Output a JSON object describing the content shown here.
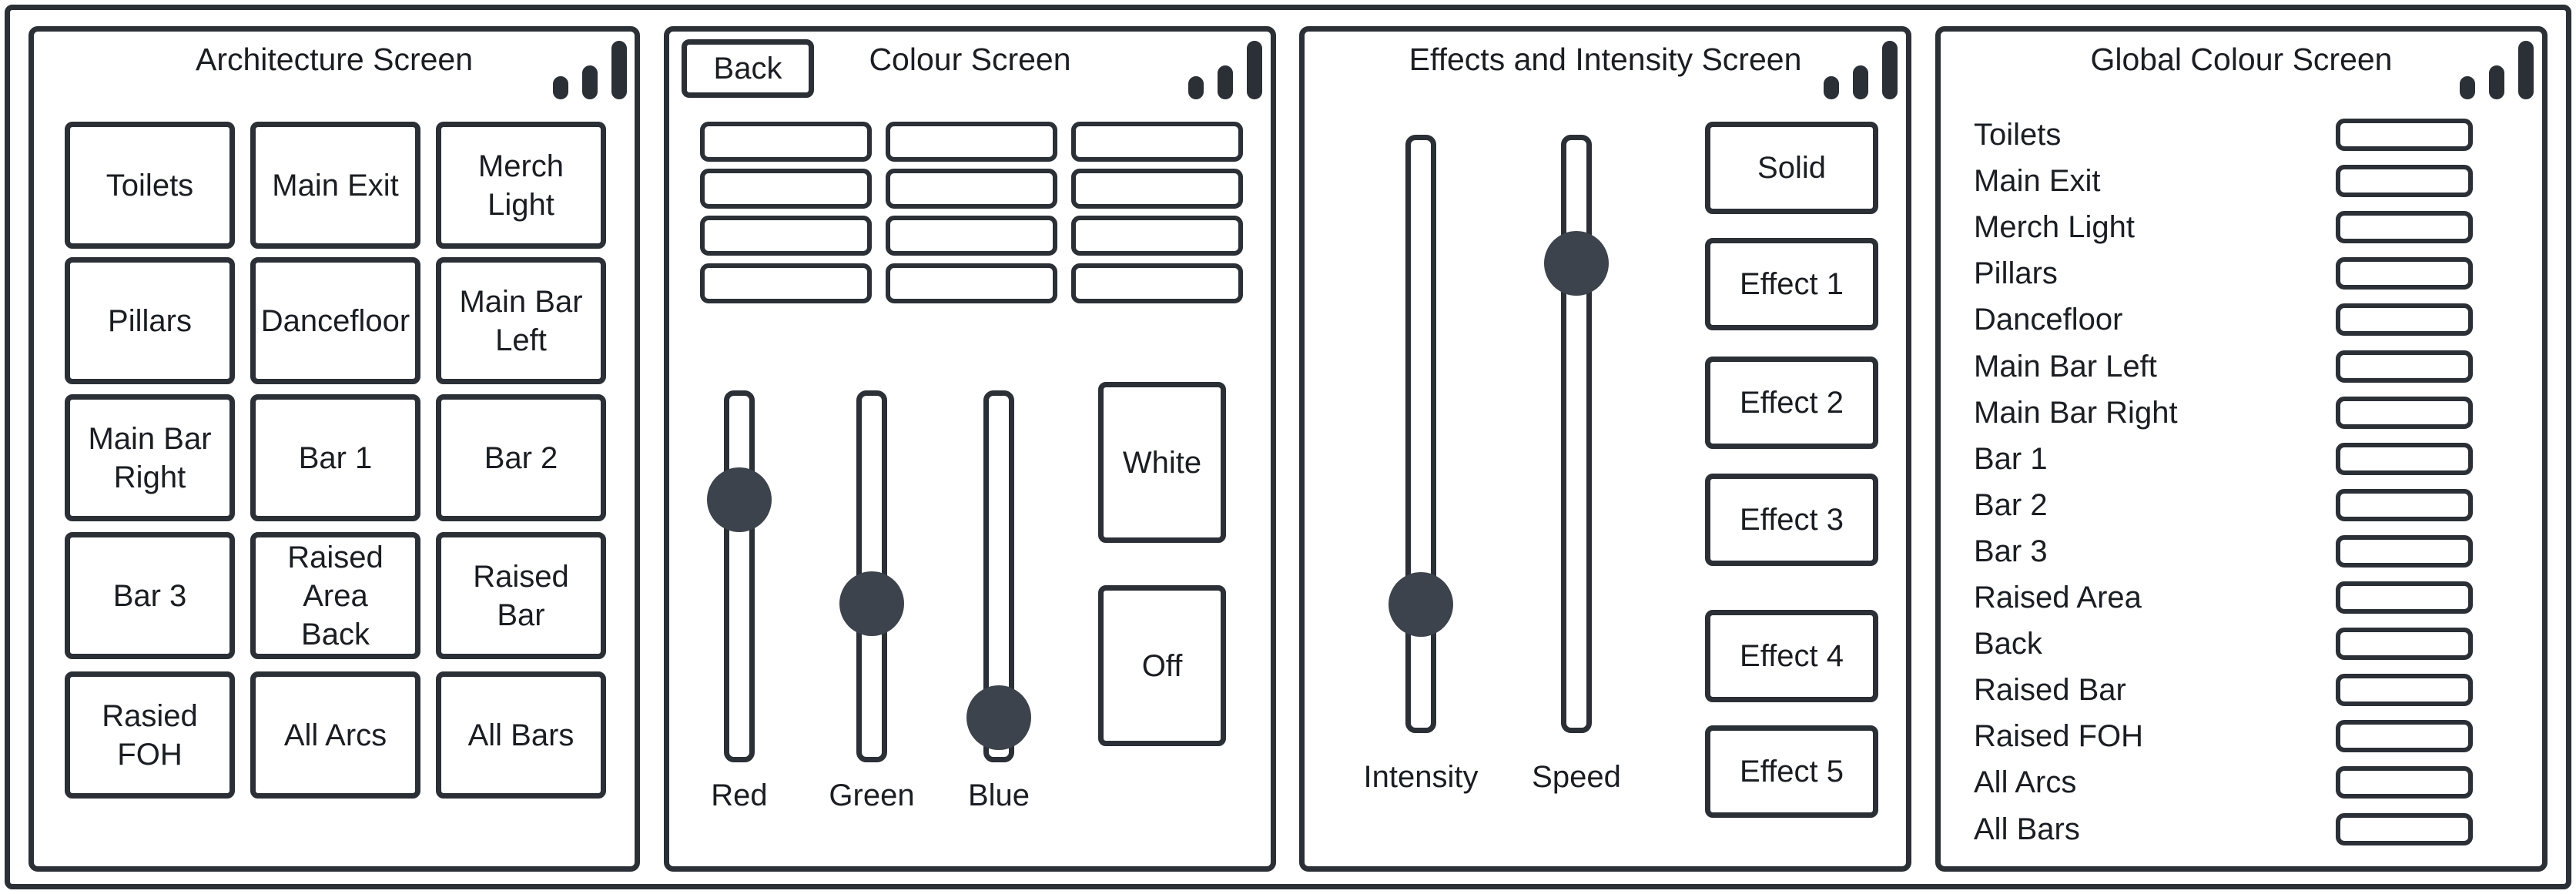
{
  "architecture": {
    "title": "Architecture Screen",
    "buttons": [
      "Toilets",
      "Main Exit",
      "Merch Light",
      "Pillars",
      "Dancefloor",
      "Main Bar Left",
      "Main Bar Right",
      "Bar 1",
      "Bar 2",
      "Bar 3",
      "Raised Area Back",
      "Raised Bar",
      "Rasied FOH",
      "All Arcs",
      "All Bars"
    ]
  },
  "colour": {
    "title": "Colour Screen",
    "back_label": "Back",
    "sliders": [
      {
        "label": "Red",
        "value": 0.75
      },
      {
        "label": "Green",
        "value": 0.41
      },
      {
        "label": "Blue",
        "value": 0.04
      }
    ],
    "white_label": "White",
    "off_label": "Off"
  },
  "effects": {
    "title": "Effects and Intensity Screen",
    "sliders": [
      {
        "label": "Intensity",
        "value": 0.18
      },
      {
        "label": "Speed",
        "value": 0.82
      }
    ],
    "buttons": [
      "Solid",
      "Effect 1",
      "Effect 2",
      "Effect 3",
      "Effect 4",
      "Effect 5"
    ]
  },
  "global": {
    "title": "Global Colour Screen",
    "items": [
      "Toilets",
      "Main Exit",
      "Merch Light",
      "Pillars",
      "Dancefloor",
      "Main Bar Left",
      "Main Bar Right",
      "Bar 1",
      "Bar 2",
      "Bar 3",
      "Raised Area",
      "Back",
      "Raised Bar",
      "Raised FOH",
      "All Arcs",
      "All Bars"
    ]
  }
}
